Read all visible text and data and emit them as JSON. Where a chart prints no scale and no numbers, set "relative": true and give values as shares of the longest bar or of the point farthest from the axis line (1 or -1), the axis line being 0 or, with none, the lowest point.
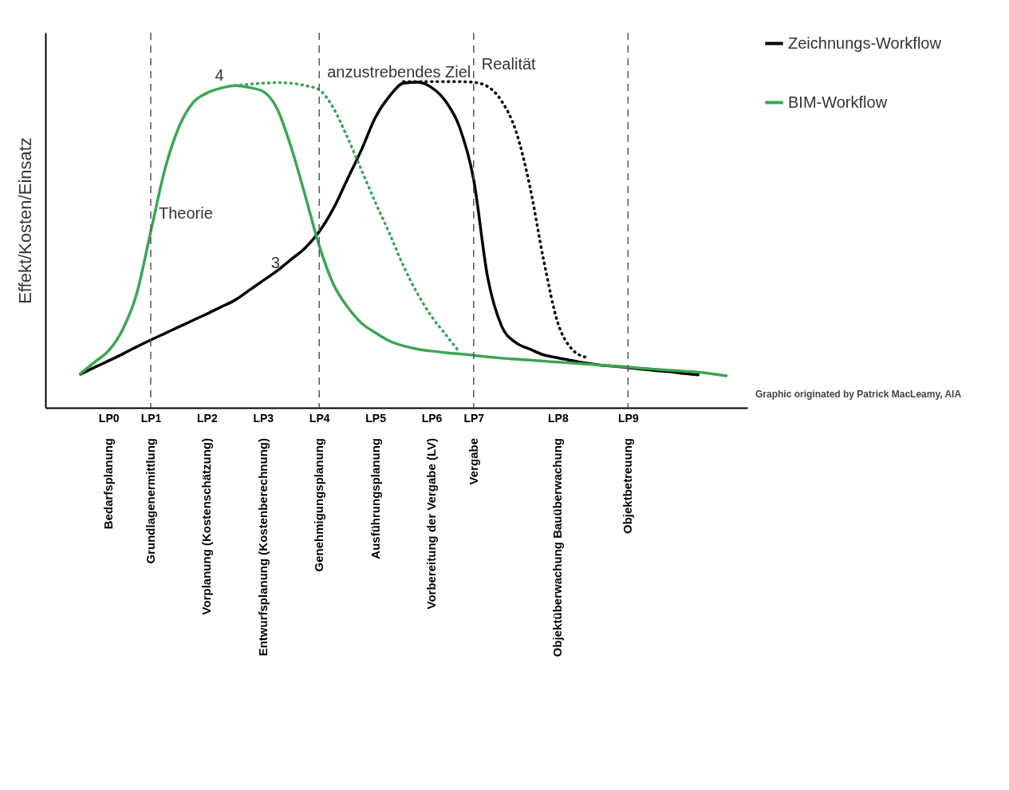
{
  "chart_data": {
    "type": "line",
    "relative": true,
    "ylabel": "Effekt/Kosten/Einsatz",
    "categories": [
      null,
      null,
      null,
      null,
      "LP0",
      null,
      null,
      "LP1",
      null,
      null,
      null,
      "LP2",
      null,
      null,
      null,
      "LP3",
      null,
      null,
      null,
      "LP4",
      null,
      null,
      null,
      "LP5",
      null,
      null,
      null,
      "LP6",
      null,
      null,
      "LP7",
      null,
      null,
      null,
      null,
      null,
      "LP8",
      null,
      null,
      null,
      null,
      "LP9",
      null,
      null,
      null,
      null,
      null,
      null,
      null,
      null
    ],
    "legend": "right",
    "series": [
      {
        "name": "Zeichnungs-Workflow",
        "color": "#000000",
        "line_style": "solid",
        "values": [
          null,
          null,
          0.103,
          0.124,
          0.144,
          0.165,
          0.187,
          0.208,
          0.228,
          0.248,
          0.268,
          0.288,
          0.309,
          0.33,
          0.36,
          0.39,
          0.42,
          0.455,
          0.49,
          0.54,
          0.61,
          0.7,
          0.79,
          0.89,
          0.955,
          0.995,
          0.998,
          0.982,
          0.94,
          0.86,
          0.7,
          0.4,
          0.25,
          0.2,
          0.18,
          0.162,
          0.153,
          0.145,
          0.137,
          0.131,
          0.127,
          0.123,
          0.118,
          0.114,
          0.111,
          0.105,
          0.101,
          null,
          null,
          null
        ]
      },
      {
        "color": "#000000",
        "line_style": "dotted",
        "values": [
          null,
          null,
          null,
          null,
          null,
          null,
          null,
          null,
          null,
          null,
          null,
          null,
          null,
          null,
          null,
          null,
          null,
          null,
          null,
          null,
          null,
          null,
          null,
          null,
          null,
          1.0,
          1.0,
          1.0,
          1.0,
          1.0,
          0.998,
          0.985,
          0.94,
          0.85,
          0.68,
          0.45,
          0.26,
          0.18,
          0.155,
          null,
          null,
          null,
          null,
          null,
          null,
          null,
          null,
          null,
          null,
          null
        ]
      },
      {
        "name": "BIM-Workflow",
        "color": "#3aa655",
        "line_style": "solid",
        "values": [
          null,
          null,
          0.105,
          0.14,
          0.175,
          0.24,
          0.35,
          0.54,
          0.73,
          0.86,
          0.935,
          0.965,
          0.98,
          0.988,
          0.982,
          0.97,
          0.917,
          0.799,
          0.651,
          0.497,
          0.38,
          0.31,
          0.26,
          0.23,
          0.205,
          0.19,
          0.18,
          0.174,
          0.169,
          0.165,
          0.161,
          0.156,
          0.152,
          0.149,
          0.146,
          0.143,
          0.14,
          0.137,
          0.134,
          0.131,
          0.128,
          0.125,
          0.121,
          0.118,
          0.115,
          0.112,
          0.109,
          0.104,
          0.098,
          null
        ]
      },
      {
        "color": "#3aa655",
        "line_style": "dotted",
        "values": [
          null,
          null,
          null,
          null,
          null,
          null,
          null,
          null,
          null,
          null,
          null,
          null,
          null,
          0.988,
          0.992,
          0.995,
          0.997,
          0.995,
          0.988,
          0.975,
          0.92,
          0.83,
          0.73,
          0.63,
          0.535,
          0.435,
          0.35,
          0.28,
          0.225,
          0.17,
          null,
          null,
          null,
          null,
          null,
          null,
          null,
          null,
          null,
          null,
          null,
          null,
          null,
          null,
          null,
          null,
          null,
          null,
          null,
          null
        ]
      }
    ],
    "ref_lines": [
      {
        "axis": "x",
        "value": "LP1",
        "line_style": "dashed",
        "color": "#555555"
      },
      {
        "axis": "x",
        "value": "LP4",
        "line_style": "dashed",
        "color": "#555555"
      },
      {
        "axis": "x",
        "value": "LP7",
        "line_style": "dashed",
        "color": "#555555"
      },
      {
        "axis": "x",
        "value": "LP9",
        "line_style": "dashed",
        "color": "#555555"
      }
    ],
    "annotations": [
      {
        "text": "anzustrebendes Ziel",
        "x": "LP4",
        "y": 0.975
      },
      {
        "text": "Theorie",
        "x": "LP1",
        "y": 0.54
      },
      {
        "text": "Realität",
        "x": "LP7",
        "y": 0.998
      },
      {
        "text": "3",
        "x": "LP3",
        "y": 0.39
      },
      {
        "text": "4",
        "x": "LP2",
        "y": 0.965
      },
      "Bedarfsplanung",
      "Grundlagenermittlung",
      "Vorplanung (Kostenschätzung)",
      "Entwurfsplanung (Kostenberechnung)",
      "Genehmigungsplanung",
      "Ausführungsplanung",
      "Vorbereitung der Vergabe (LV)",
      "Vergabe",
      "Objektüberwachung Bauüberwachung",
      "Objektbetreuung",
      "Graphic originated by Patrick MacLeamy, AIA"
    ]
  }
}
